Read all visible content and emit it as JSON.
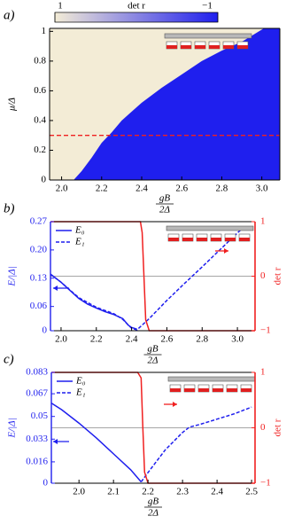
{
  "chart_data": [
    {
      "type": "heatmap",
      "panel_label": "a)",
      "xlabel": {
        "numerator": "gB",
        "denominator": "2Δ"
      },
      "ylabel": "μ/Δ",
      "xlim": [
        1.94,
        3.09
      ],
      "ylim": [
        0,
        1.02
      ],
      "xticks": [
        {
          "value": 2,
          "label": "2.0"
        },
        2.2,
        2.4,
        2.6,
        2.8,
        {
          "value": 3,
          "label": "3.0"
        }
      ],
      "yticks": [
        0,
        0.2,
        0.4,
        0.6,
        0.8,
        1
      ],
      "colorbar": {
        "label": "det r",
        "ticks": [
          1,
          {
            "value": -1,
            "label": "−1"
          }
        ],
        "colors": [
          "#f3ecd6",
          "#1f1fee"
        ]
      },
      "boundary": {
        "x": [
          2.06,
          2.1,
          2.15,
          2.2,
          2.25,
          2.3,
          2.4,
          2.5,
          2.6,
          2.7,
          2.8,
          2.9,
          3.01
        ],
        "y": [
          0,
          0.06,
          0.15,
          0.25,
          0.32,
          0.4,
          0.52,
          0.62,
          0.71,
          0.8,
          0.87,
          0.93,
          1.02
        ]
      },
      "cut_line": {
        "y": 0.3,
        "color": "#f02020"
      }
    },
    {
      "type": "line",
      "panel_label": "b)",
      "xlabel": {
        "numerator": "gB",
        "denominator": "2Δ"
      },
      "ylabel": "E/|Δ|",
      "y2label": "det r",
      "xlim": [
        1.94,
        3.1
      ],
      "ylim": [
        0,
        0.27
      ],
      "y2lim": [
        -1,
        1
      ],
      "xticks": [
        {
          "value": 2,
          "label": "2.0"
        },
        2.2,
        2.4,
        2.6,
        2.8,
        {
          "value": 3,
          "label": "3.0"
        }
      ],
      "yticks": [
        0,
        0.06,
        0.13,
        {
          "value": 0.2,
          "label": "0.20"
        },
        0.27
      ],
      "y2ticks": [
        {
          "value": -1,
          "label": "−1"
        },
        0,
        1
      ],
      "reference_line_y2": 0,
      "legend": "upper left",
      "series": [
        {
          "name": "E₀",
          "color": "#1f1fee",
          "linestyle": "solid",
          "x": [
            1.94,
            2.0,
            2.05,
            2.1,
            2.15,
            2.2,
            2.25,
            2.3,
            2.35,
            2.38,
            2.4,
            2.43
          ],
          "values": [
            0.14,
            0.12,
            0.1,
            0.08,
            0.066,
            0.056,
            0.047,
            0.04,
            0.03,
            0.014,
            0.008,
            0.004
          ]
        },
        {
          "name": "E₁",
          "color": "#1f1fee",
          "linestyle": "dashed",
          "x": [
            1.94,
            2.0,
            2.1,
            2.2,
            2.3,
            2.35,
            2.4,
            2.43,
            2.45,
            2.5,
            2.6,
            2.7,
            2.8,
            2.9,
            3.0,
            3.02
          ],
          "values": [
            0.14,
            0.12,
            0.082,
            0.058,
            0.042,
            0.028,
            0.006,
            0.002,
            0.01,
            0.03,
            0.075,
            0.117,
            0.158,
            0.2,
            0.242,
            0.25
          ]
        },
        {
          "name": "det r",
          "color": "#f02020",
          "linestyle": "solid",
          "axis": "y2",
          "x": [
            1.94,
            2.45,
            2.46,
            2.47,
            2.48,
            2.5,
            3.1
          ],
          "values": [
            1,
            1,
            0.8,
            0,
            -0.8,
            -1,
            -1
          ]
        }
      ]
    },
    {
      "type": "line",
      "panel_label": "c)",
      "xlabel": {
        "numerator": "gB",
        "denominator": "2Δ"
      },
      "ylabel": "E/|Δ|",
      "y2label": "det r",
      "xlim": [
        1.92,
        2.51
      ],
      "ylim": [
        0,
        0.083
      ],
      "y2lim": [
        -1,
        1
      ],
      "xticks": [
        {
          "value": 2,
          "label": "2.0"
        },
        2.1,
        2.2,
        2.3,
        2.4,
        2.5
      ],
      "yticks": [
        0,
        0.016,
        0.033,
        0.05,
        0.067,
        0.083
      ],
      "y2ticks": [
        {
          "value": -1,
          "label": "−1"
        },
        0,
        1
      ],
      "reference_line_y2": 0,
      "legend": "upper left",
      "series": [
        {
          "name": "E₀",
          "color": "#1f1fee",
          "linestyle": "solid",
          "x": [
            1.92,
            1.95,
            2.0,
            2.05,
            2.1,
            2.15,
            2.18
          ],
          "values": [
            0.06,
            0.055,
            0.045,
            0.034,
            0.022,
            0.01,
            0.001
          ]
        },
        {
          "name": "E₁",
          "color": "#1f1fee",
          "linestyle": "dashed",
          "x": [
            2.18,
            2.2,
            2.25,
            2.3,
            2.32,
            2.35,
            2.4,
            2.45,
            2.5
          ],
          "values": [
            0.001,
            0.008,
            0.025,
            0.038,
            0.042,
            0.044,
            0.048,
            0.052,
            0.057
          ]
        },
        {
          "name": "det r",
          "color": "#f02020",
          "linestyle": "solid",
          "axis": "y2",
          "x": [
            1.92,
            2.17,
            2.18,
            2.185,
            2.19,
            2.2,
            2.51
          ],
          "values": [
            1,
            1,
            0.9,
            0,
            -0.8,
            -1,
            -1
          ]
        }
      ]
    }
  ]
}
